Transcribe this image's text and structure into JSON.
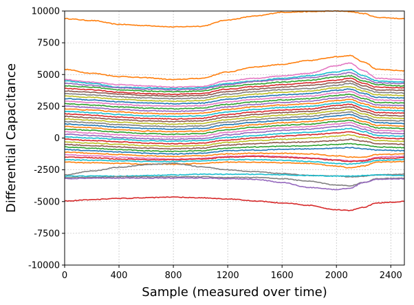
{
  "chart_data": {
    "type": "line",
    "title": "",
    "xlabel": "Sample (measured over time)",
    "ylabel": "Differential Capacitance",
    "xlim": [
      0,
      2500
    ],
    "ylim": [
      -10000,
      10000
    ],
    "xticks": [
      0,
      400,
      800,
      1200,
      1600,
      2000,
      2400
    ],
    "yticks": [
      -10000,
      -7500,
      -5000,
      -2500,
      0,
      2500,
      5000,
      7500,
      10000
    ],
    "xtick_labels": [
      "0",
      "400",
      "800",
      "1200",
      "1600",
      "2000",
      "2400"
    ],
    "ytick_labels": [
      "-10000",
      "-7500",
      "-5000",
      "-2500",
      "0",
      "2500",
      "5000",
      "7500",
      "10000"
    ],
    "grid": true,
    "legend": "none",
    "x": [
      0,
      200,
      400,
      600,
      800,
      1000,
      1200,
      1400,
      1600,
      1800,
      2000,
      2100,
      2200,
      2300,
      2500
    ],
    "palette": [
      "#1f77b4",
      "#ff7f0e",
      "#2ca02c",
      "#d62728",
      "#9467bd",
      "#8c564b",
      "#e377c2",
      "#7f7f7f",
      "#bcbd22",
      "#17becf"
    ],
    "series": [
      {
        "color": "#ff7f0e",
        "values": [
          9400,
          9250,
          8950,
          8850,
          8750,
          8800,
          9300,
          9600,
          9900,
          9950,
          10000,
          9950,
          9800,
          9500,
          9400
        ]
      },
      {
        "color": "#ff7f0e",
        "values": [
          5400,
          5100,
          4850,
          4750,
          4600,
          4700,
          5200,
          5600,
          5800,
          6100,
          6400,
          6500,
          6000,
          5400,
          5300
        ]
      },
      {
        "color": "#e377c2",
        "values": [
          4600,
          4400,
          4200,
          4100,
          4000,
          4050,
          4500,
          4700,
          4900,
          5100,
          5700,
          5900,
          5300,
          4700,
          4600
        ]
      },
      {
        "color": "#17becf",
        "values": [
          4500,
          4300,
          4000,
          3950,
          3900,
          3950,
          4300,
          4500,
          4700,
          4900,
          5200,
          5400,
          4900,
          4500,
          4400
        ]
      },
      {
        "color": "#9467bd",
        "values": [
          4300,
          4150,
          3950,
          3850,
          3800,
          3850,
          4200,
          4450,
          4600,
          4750,
          5000,
          5150,
          4700,
          4350,
          4300
        ]
      },
      {
        "color": "#2ca02c",
        "values": [
          4100,
          4000,
          3800,
          3700,
          3650,
          3700,
          4050,
          4250,
          4400,
          4550,
          4800,
          4900,
          4500,
          4200,
          4100
        ]
      },
      {
        "color": "#d62728",
        "values": [
          3900,
          3800,
          3600,
          3500,
          3450,
          3500,
          3850,
          4050,
          4200,
          4350,
          4550,
          4700,
          4300,
          4000,
          3950
        ]
      },
      {
        "color": "#8c564b",
        "values": [
          3700,
          3600,
          3450,
          3350,
          3300,
          3350,
          3650,
          3850,
          4000,
          4150,
          4350,
          4500,
          4100,
          3800,
          3750
        ]
      },
      {
        "color": "#7f7f7f",
        "values": [
          3500,
          3400,
          3250,
          3150,
          3100,
          3150,
          3450,
          3650,
          3800,
          3900,
          4150,
          4300,
          3900,
          3600,
          3550
        ]
      },
      {
        "color": "#bcbd22",
        "values": [
          3300,
          3200,
          3050,
          2950,
          2900,
          2950,
          3250,
          3450,
          3600,
          3700,
          3950,
          4050,
          3700,
          3400,
          3350
        ]
      },
      {
        "color": "#1f77b4",
        "values": [
          3100,
          3000,
          2850,
          2750,
          2700,
          2750,
          3050,
          3250,
          3400,
          3500,
          3750,
          3850,
          3500,
          3200,
          3150
        ]
      },
      {
        "color": "#e377c2",
        "values": [
          2900,
          2800,
          2650,
          2550,
          2500,
          2550,
          2850,
          3050,
          3200,
          3300,
          3550,
          3650,
          3300,
          3000,
          2950
        ]
      },
      {
        "color": "#2ca02c",
        "values": [
          2700,
          2600,
          2450,
          2350,
          2300,
          2350,
          2650,
          2850,
          3000,
          3100,
          3350,
          3450,
          3100,
          2800,
          2750
        ]
      },
      {
        "color": "#9467bd",
        "values": [
          2500,
          2400,
          2250,
          2150,
          2100,
          2150,
          2450,
          2650,
          2800,
          2900,
          3150,
          3250,
          2900,
          2600,
          2550
        ]
      },
      {
        "color": "#ff7f0e",
        "values": [
          2300,
          2200,
          2050,
          1950,
          1900,
          1950,
          2250,
          2450,
          2600,
          2700,
          2950,
          3050,
          2700,
          2400,
          2350
        ]
      },
      {
        "color": "#17becf",
        "values": [
          2100,
          2000,
          1850,
          1750,
          1700,
          1750,
          2050,
          2250,
          2400,
          2500,
          2750,
          2850,
          2500,
          2200,
          2150
        ]
      },
      {
        "color": "#d62728",
        "values": [
          1900,
          1800,
          1650,
          1550,
          1500,
          1550,
          1850,
          2050,
          2200,
          2300,
          2550,
          2650,
          2300,
          2000,
          1950
        ]
      },
      {
        "color": "#8c564b",
        "values": [
          1700,
          1600,
          1450,
          1350,
          1300,
          1350,
          1650,
          1850,
          2000,
          2100,
          2350,
          2450,
          2100,
          1800,
          1750
        ]
      },
      {
        "color": "#bcbd22",
        "values": [
          1500,
          1400,
          1250,
          1150,
          1100,
          1150,
          1450,
          1650,
          1800,
          1900,
          2150,
          2250,
          1900,
          1600,
          1550
        ]
      },
      {
        "color": "#7f7f7f",
        "values": [
          1300,
          1200,
          1050,
          950,
          900,
          950,
          1250,
          1450,
          1600,
          1700,
          1950,
          2050,
          1700,
          1400,
          1350
        ]
      },
      {
        "color": "#1f77b4",
        "values": [
          1100,
          1000,
          850,
          750,
          700,
          750,
          1050,
          1250,
          1400,
          1500,
          1750,
          1850,
          1500,
          1200,
          1150
        ]
      },
      {
        "color": "#ff7f0e",
        "values": [
          900,
          800,
          650,
          550,
          500,
          550,
          850,
          1050,
          1200,
          1300,
          1500,
          1600,
          1300,
          1000,
          950
        ]
      },
      {
        "color": "#2ca02c",
        "values": [
          700,
          600,
          450,
          350,
          300,
          350,
          650,
          850,
          1000,
          1100,
          1300,
          1400,
          1100,
          800,
          750
        ]
      },
      {
        "color": "#e377c2",
        "values": [
          500,
          400,
          250,
          150,
          100,
          150,
          450,
          650,
          800,
          900,
          1100,
          1200,
          900,
          600,
          550
        ]
      },
      {
        "color": "#9467bd",
        "values": [
          300,
          200,
          50,
          -50,
          -100,
          -50,
          250,
          450,
          600,
          700,
          900,
          1000,
          700,
          400,
          350
        ]
      },
      {
        "color": "#17becf",
        "values": [
          100,
          0,
          -100,
          -200,
          -250,
          -200,
          50,
          200,
          350,
          450,
          650,
          750,
          500,
          200,
          150
        ]
      },
      {
        "color": "#d62728",
        "values": [
          -100,
          -200,
          -300,
          -400,
          -450,
          -400,
          -150,
          0,
          150,
          250,
          400,
          500,
          250,
          0,
          -50
        ]
      },
      {
        "color": "#bcbd22",
        "values": [
          -300,
          -400,
          -500,
          -600,
          -650,
          -600,
          -350,
          -200,
          -100,
          0,
          150,
          250,
          50,
          -200,
          -250
        ]
      },
      {
        "color": "#8c564b",
        "values": [
          -500,
          -600,
          -700,
          -800,
          -850,
          -800,
          -550,
          -450,
          -350,
          -300,
          -200,
          -100,
          -250,
          -450,
          -500
        ]
      },
      {
        "color": "#2ca02c",
        "values": [
          -700,
          -800,
          -900,
          -1000,
          -1050,
          -1000,
          -800,
          -700,
          -650,
          -600,
          -500,
          -450,
          -550,
          -700,
          -750
        ]
      },
      {
        "color": "#1f77b4",
        "values": [
          -900,
          -1000,
          -1100,
          -1200,
          -1250,
          -1200,
          -1000,
          -950,
          -900,
          -850,
          -800,
          -750,
          -850,
          -950,
          -1000
        ]
      },
      {
        "color": "#ff7f0e",
        "values": [
          -1100,
          -1200,
          -1300,
          -1400,
          -1450,
          -1400,
          -1250,
          -1200,
          -1200,
          -1250,
          -1400,
          -1500,
          -1500,
          -1300,
          -1250
        ]
      },
      {
        "color": "#e377c2",
        "values": [
          -1300,
          -1400,
          -1500,
          -1600,
          -1650,
          -1600,
          -1450,
          -1400,
          -1450,
          -1550,
          -1700,
          -1800,
          -1750,
          -1500,
          -1450
        ]
      },
      {
        "color": "#d62728",
        "values": [
          -1500,
          -1550,
          -1650,
          -1700,
          -1700,
          -1650,
          -1500,
          -1450,
          -1500,
          -1600,
          -1750,
          -1850,
          -1800,
          -1600,
          -1550
        ]
      },
      {
        "color": "#17becf",
        "values": [
          -1700,
          -1750,
          -1800,
          -1850,
          -1850,
          -1800,
          -1700,
          -1700,
          -1750,
          -1850,
          -2000,
          -2050,
          -1950,
          -1750,
          -1700
        ]
      },
      {
        "color": "#ff7f0e",
        "values": [
          -1900,
          -1950,
          -2000,
          -2050,
          -2050,
          -2000,
          -1900,
          -1900,
          -1950,
          -2000,
          -2200,
          -2350,
          -2200,
          -1900,
          -1850
        ]
      },
      {
        "color": "#7f7f7f",
        "values": [
          -2900,
          -2600,
          -2300,
          -2100,
          -2000,
          -2250,
          -2500,
          -2650,
          -2800,
          -2950,
          -3000,
          -3050,
          -3000,
          -2900,
          -2850
        ]
      },
      {
        "color": "#17becf",
        "values": [
          -3000,
          -3000,
          -3000,
          -2950,
          -2900,
          -2850,
          -2850,
          -2850,
          -2900,
          -2950,
          -3000,
          -3000,
          -2950,
          -2900,
          -2950
        ]
      },
      {
        "color": "#7f7f7f",
        "values": [
          -3100,
          -3100,
          -3050,
          -3050,
          -3050,
          -3050,
          -3100,
          -3100,
          -3200,
          -3400,
          -3700,
          -3750,
          -3500,
          -3200,
          -3150
        ]
      },
      {
        "color": "#9467bd",
        "values": [
          -3200,
          -3150,
          -3150,
          -3150,
          -3150,
          -3150,
          -3200,
          -3250,
          -3500,
          -3900,
          -4050,
          -3950,
          -3500,
          -3250,
          -3200
        ]
      },
      {
        "color": "#d62728",
        "values": [
          -4950,
          -4850,
          -4750,
          -4700,
          -4650,
          -4700,
          -4800,
          -4950,
          -5100,
          -5300,
          -5650,
          -5700,
          -5450,
          -5100,
          -5000
        ]
      }
    ]
  }
}
